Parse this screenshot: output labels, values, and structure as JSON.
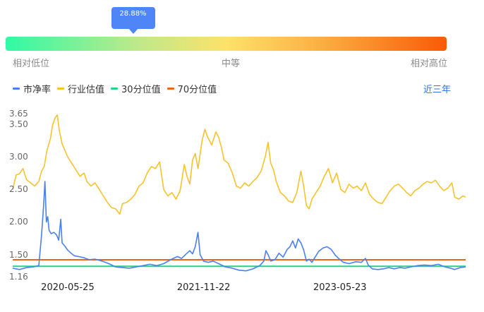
{
  "gauge": {
    "tooltip": "28.88%",
    "percentile": 28.88,
    "low_label": "相对低位",
    "mid_label": "中等",
    "high_label": "相对高位"
  },
  "legend": {
    "series1": "市净率",
    "series2": "行业估值",
    "series3": "30分位值",
    "series4": "70分位值"
  },
  "range_link": "近三年",
  "colors": {
    "pb": "#4a7ff0",
    "industry": "#f7c22a",
    "p30": "#23d488",
    "p70": "#f26515",
    "tooltip": "#4e86f7"
  },
  "chart_data": {
    "type": "line",
    "x_start": "2019-10-08",
    "x_end": "2024-09-30",
    "x_ticks": [
      "2020-05-25",
      "2021-11-22",
      "2023-05-23"
    ],
    "y_ticks": [
      1.16,
      1.5,
      2.0,
      2.5,
      3.0,
      3.5,
      3.65
    ],
    "ylim": [
      1.16,
      3.65
    ],
    "series": [
      {
        "name": "市净率",
        "values": [
          [
            0,
            1.29
          ],
          [
            10,
            1.27
          ],
          [
            20,
            1.3
          ],
          [
            30,
            1.31
          ],
          [
            38,
            1.33
          ],
          [
            42,
            1.8
          ],
          [
            45,
            2.25
          ],
          [
            47,
            2.62
          ],
          [
            49,
            2.0
          ],
          [
            51,
            2.08
          ],
          [
            53,
            1.87
          ],
          [
            56,
            1.82
          ],
          [
            60,
            1.84
          ],
          [
            64,
            1.8
          ],
          [
            67,
            1.72
          ],
          [
            70,
            2.04
          ],
          [
            72,
            1.68
          ],
          [
            76,
            1.63
          ],
          [
            80,
            1.57
          ],
          [
            85,
            1.52
          ],
          [
            90,
            1.48
          ],
          [
            96,
            1.47
          ],
          [
            104,
            1.45
          ],
          [
            112,
            1.42
          ],
          [
            120,
            1.43
          ],
          [
            130,
            1.4
          ],
          [
            140,
            1.36
          ],
          [
            150,
            1.31
          ],
          [
            160,
            1.3
          ],
          [
            170,
            1.29
          ],
          [
            180,
            1.31
          ],
          [
            190,
            1.33
          ],
          [
            200,
            1.35
          ],
          [
            210,
            1.33
          ],
          [
            220,
            1.36
          ],
          [
            230,
            1.42
          ],
          [
            240,
            1.47
          ],
          [
            246,
            1.44
          ],
          [
            252,
            1.5
          ],
          [
            258,
            1.56
          ],
          [
            262,
            1.51
          ],
          [
            266,
            1.62
          ],
          [
            270,
            1.84
          ],
          [
            273,
            1.5
          ],
          [
            278,
            1.4
          ],
          [
            285,
            1.38
          ],
          [
            292,
            1.4
          ],
          [
            300,
            1.36
          ],
          [
            310,
            1.31
          ],
          [
            320,
            1.29
          ],
          [
            330,
            1.26
          ],
          [
            340,
            1.25
          ],
          [
            350,
            1.28
          ],
          [
            360,
            1.33
          ],
          [
            366,
            1.4
          ],
          [
            369,
            1.56
          ],
          [
            372,
            1.5
          ],
          [
            376,
            1.4
          ],
          [
            382,
            1.42
          ],
          [
            388,
            1.52
          ],
          [
            394,
            1.46
          ],
          [
            400,
            1.58
          ],
          [
            404,
            1.62
          ],
          [
            408,
            1.71
          ],
          [
            412,
            1.6
          ],
          [
            416,
            1.74
          ],
          [
            420,
            1.68
          ],
          [
            424,
            1.57
          ],
          [
            428,
            1.4
          ],
          [
            432,
            1.43
          ],
          [
            436,
            1.38
          ],
          [
            440,
            1.45
          ],
          [
            446,
            1.55
          ],
          [
            452,
            1.6
          ],
          [
            458,
            1.62
          ],
          [
            464,
            1.58
          ],
          [
            470,
            1.49
          ],
          [
            476,
            1.43
          ],
          [
            482,
            1.38
          ],
          [
            490,
            1.36
          ],
          [
            500,
            1.39
          ],
          [
            508,
            1.38
          ],
          [
            514,
            1.44
          ],
          [
            518,
            1.34
          ],
          [
            524,
            1.28
          ],
          [
            532,
            1.27
          ],
          [
            540,
            1.28
          ],
          [
            548,
            1.3
          ],
          [
            556,
            1.28
          ],
          [
            564,
            1.3
          ],
          [
            572,
            1.29
          ],
          [
            580,
            1.31
          ],
          [
            590,
            1.33
          ],
          [
            600,
            1.34
          ],
          [
            610,
            1.33
          ],
          [
            620,
            1.35
          ],
          [
            630,
            1.31
          ],
          [
            638,
            1.29
          ],
          [
            644,
            1.27
          ],
          [
            652,
            1.3
          ],
          [
            660,
            1.31
          ]
        ]
      },
      {
        "name": "行业估值",
        "values": [
          [
            0,
            2.5
          ],
          [
            5,
            2.72
          ],
          [
            10,
            2.74
          ],
          [
            15,
            2.82
          ],
          [
            20,
            2.65
          ],
          [
            26,
            2.6
          ],
          [
            32,
            2.55
          ],
          [
            38,
            2.62
          ],
          [
            42,
            2.78
          ],
          [
            46,
            2.85
          ],
          [
            50,
            3.1
          ],
          [
            55,
            3.28
          ],
          [
            58,
            3.48
          ],
          [
            62,
            3.6
          ],
          [
            65,
            3.64
          ],
          [
            68,
            3.4
          ],
          [
            72,
            3.2
          ],
          [
            76,
            3.1
          ],
          [
            80,
            3.0
          ],
          [
            86,
            2.9
          ],
          [
            92,
            2.8
          ],
          [
            98,
            2.7
          ],
          [
            104,
            2.75
          ],
          [
            108,
            2.62
          ],
          [
            114,
            2.55
          ],
          [
            120,
            2.6
          ],
          [
            126,
            2.5
          ],
          [
            132,
            2.4
          ],
          [
            138,
            2.3
          ],
          [
            144,
            2.22
          ],
          [
            150,
            2.2
          ],
          [
            156,
            2.12
          ],
          [
            160,
            2.28
          ],
          [
            166,
            2.3
          ],
          [
            172,
            2.35
          ],
          [
            178,
            2.42
          ],
          [
            184,
            2.55
          ],
          [
            190,
            2.6
          ],
          [
            196,
            2.75
          ],
          [
            202,
            2.85
          ],
          [
            208,
            2.82
          ],
          [
            214,
            2.92
          ],
          [
            220,
            2.5
          ],
          [
            226,
            2.4
          ],
          [
            232,
            2.45
          ],
          [
            238,
            2.35
          ],
          [
            244,
            2.48
          ],
          [
            250,
            2.88
          ],
          [
            254,
            2.7
          ],
          [
            258,
            2.58
          ],
          [
            262,
            2.95
          ],
          [
            266,
            3.05
          ],
          [
            270,
            2.82
          ],
          [
            276,
            3.25
          ],
          [
            280,
            3.42
          ],
          [
            284,
            3.3
          ],
          [
            290,
            3.18
          ],
          [
            296,
            3.38
          ],
          [
            300,
            3.3
          ],
          [
            304,
            3.15
          ],
          [
            308,
            2.95
          ],
          [
            314,
            2.9
          ],
          [
            320,
            2.75
          ],
          [
            326,
            2.55
          ],
          [
            332,
            2.52
          ],
          [
            338,
            2.6
          ],
          [
            344,
            2.55
          ],
          [
            350,
            2.62
          ],
          [
            356,
            2.68
          ],
          [
            362,
            2.78
          ],
          [
            368,
            3.0
          ],
          [
            372,
            3.22
          ],
          [
            376,
            2.9
          ],
          [
            380,
            2.8
          ],
          [
            384,
            2.62
          ],
          [
            390,
            2.45
          ],
          [
            396,
            2.4
          ],
          [
            402,
            2.32
          ],
          [
            408,
            2.3
          ],
          [
            414,
            2.45
          ],
          [
            420,
            2.78
          ],
          [
            424,
            2.55
          ],
          [
            428,
            2.25
          ],
          [
            432,
            2.2
          ],
          [
            436,
            2.35
          ],
          [
            442,
            2.45
          ],
          [
            448,
            2.55
          ],
          [
            454,
            2.7
          ],
          [
            460,
            2.82
          ],
          [
            466,
            2.6
          ],
          [
            472,
            2.75
          ],
          [
            478,
            2.5
          ],
          [
            484,
            2.45
          ],
          [
            490,
            2.58
          ],
          [
            496,
            2.52
          ],
          [
            502,
            2.55
          ],
          [
            508,
            2.48
          ],
          [
            514,
            2.6
          ],
          [
            520,
            2.42
          ],
          [
            526,
            2.35
          ],
          [
            532,
            2.3
          ],
          [
            538,
            2.28
          ],
          [
            544,
            2.38
          ],
          [
            550,
            2.48
          ],
          [
            556,
            2.55
          ],
          [
            562,
            2.58
          ],
          [
            568,
            2.52
          ],
          [
            574,
            2.45
          ],
          [
            580,
            2.4
          ],
          [
            586,
            2.48
          ],
          [
            592,
            2.52
          ],
          [
            598,
            2.58
          ],
          [
            604,
            2.62
          ],
          [
            610,
            2.6
          ],
          [
            616,
            2.64
          ],
          [
            622,
            2.55
          ],
          [
            628,
            2.48
          ],
          [
            634,
            2.52
          ],
          [
            640,
            2.6
          ],
          [
            644,
            2.38
          ],
          [
            650,
            2.35
          ],
          [
            656,
            2.4
          ],
          [
            660,
            2.38
          ]
        ]
      },
      {
        "name": "30分位值",
        "values": [
          [
            0,
            1.32
          ],
          [
            660,
            1.32
          ]
        ]
      },
      {
        "name": "70分位值",
        "values": [
          [
            0,
            1.42
          ],
          [
            660,
            1.42
          ]
        ]
      }
    ]
  }
}
